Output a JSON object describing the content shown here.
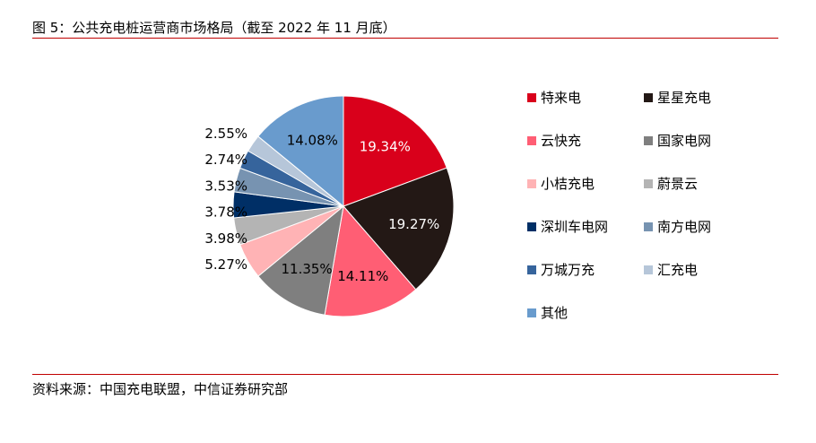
{
  "header": {
    "title": "图 5：公共充电桩运营商市场格局（截至 2022 年 11 月底）"
  },
  "footer": {
    "source": "资料来源：中国充电联盟，中信证券研究部"
  },
  "chart_data": {
    "type": "pie",
    "title": "图 5：公共充电桩运营商市场格局（截至 2022 年 11 月底）",
    "legend_position": "right",
    "slices": [
      {
        "name": "特来电",
        "value": 19.34,
        "label": "19.34%",
        "color": "#d9001b",
        "label_color": "#ffffff",
        "label_placement": "inside"
      },
      {
        "name": "星星充电",
        "value": 19.27,
        "label": "19.27%",
        "color": "#231815",
        "label_color": "#ffffff",
        "label_placement": "inside"
      },
      {
        "name": "云快充",
        "value": 14.11,
        "label": "14.11%",
        "color": "#ff5e74",
        "label_color": "#000000",
        "label_placement": "inside"
      },
      {
        "name": "国家电网",
        "value": 11.35,
        "label": "11.35%",
        "color": "#7f7f7f",
        "label_color": "#000000",
        "label_placement": "inside"
      },
      {
        "name": "小桔充电",
        "value": 5.27,
        "label": "5.27%",
        "color": "#ffb3b5",
        "label_color": "#000000",
        "label_placement": "outside"
      },
      {
        "name": "蔚景云",
        "value": 3.98,
        "label": "3.98%",
        "color": "#b4b4b4",
        "label_color": "#000000",
        "label_placement": "outside"
      },
      {
        "name": "深圳车电网",
        "value": 3.78,
        "label": "3.78%",
        "color": "#002f66",
        "label_color": "#000000",
        "label_placement": "outside"
      },
      {
        "name": "南方电网",
        "value": 3.53,
        "label": "3.53%",
        "color": "#7793b1",
        "label_color": "#000000",
        "label_placement": "outside"
      },
      {
        "name": "万城万充",
        "value": 2.74,
        "label": "2.74%",
        "color": "#36649c",
        "label_color": "#000000",
        "label_placement": "outside"
      },
      {
        "name": "汇充电",
        "value": 2.55,
        "label": "2.55%",
        "color": "#b6c6d9",
        "label_color": "#000000",
        "label_placement": "outside"
      },
      {
        "name": "其他",
        "value": 14.08,
        "label": "14.08%",
        "color": "#699bcd",
        "label_color": "#000000",
        "label_placement": "inside"
      }
    ]
  }
}
